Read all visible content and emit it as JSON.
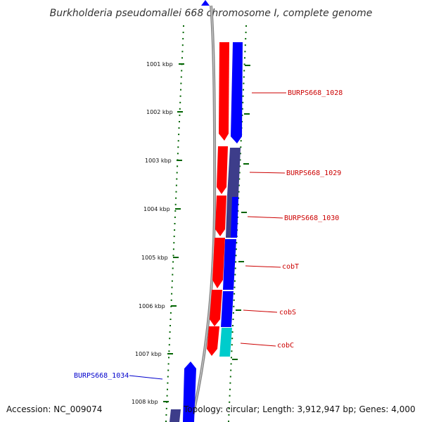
{
  "title": "Burkholderia pseudomallei 668 chromosome I, complete genome",
  "footer": {
    "accession": "Accession: NC_009074",
    "summary": "Topology: circular; Length: 3,912,947 bp; Genes: 4,000"
  },
  "scale": {
    "unit": "kbp",
    "ticks": [
      "1001 kbp",
      "1002 kbp",
      "1003 kbp",
      "1004 kbp",
      "1005 kbp",
      "1006 kbp",
      "1007 kbp",
      "1008 kbp"
    ]
  },
  "colors": {
    "forward_cds": "#0000ff",
    "forward_cds_dark": "#3d3d8a",
    "reverse_cds": "#ff0000",
    "rna": "#00cccc",
    "backbone": "#888888",
    "tick": "#006400",
    "label_forward": "#0000cc",
    "label_reverse": "#cc0000"
  },
  "genes": [
    {
      "label": "BURPS668_1028"
    },
    {
      "label": "BURPS668_1029"
    },
    {
      "label": "BURPS668_1030"
    },
    {
      "label": "cobT"
    },
    {
      "label": "cobS"
    },
    {
      "label": "cobC"
    },
    {
      "label": "BURPS668_1034"
    }
  ]
}
